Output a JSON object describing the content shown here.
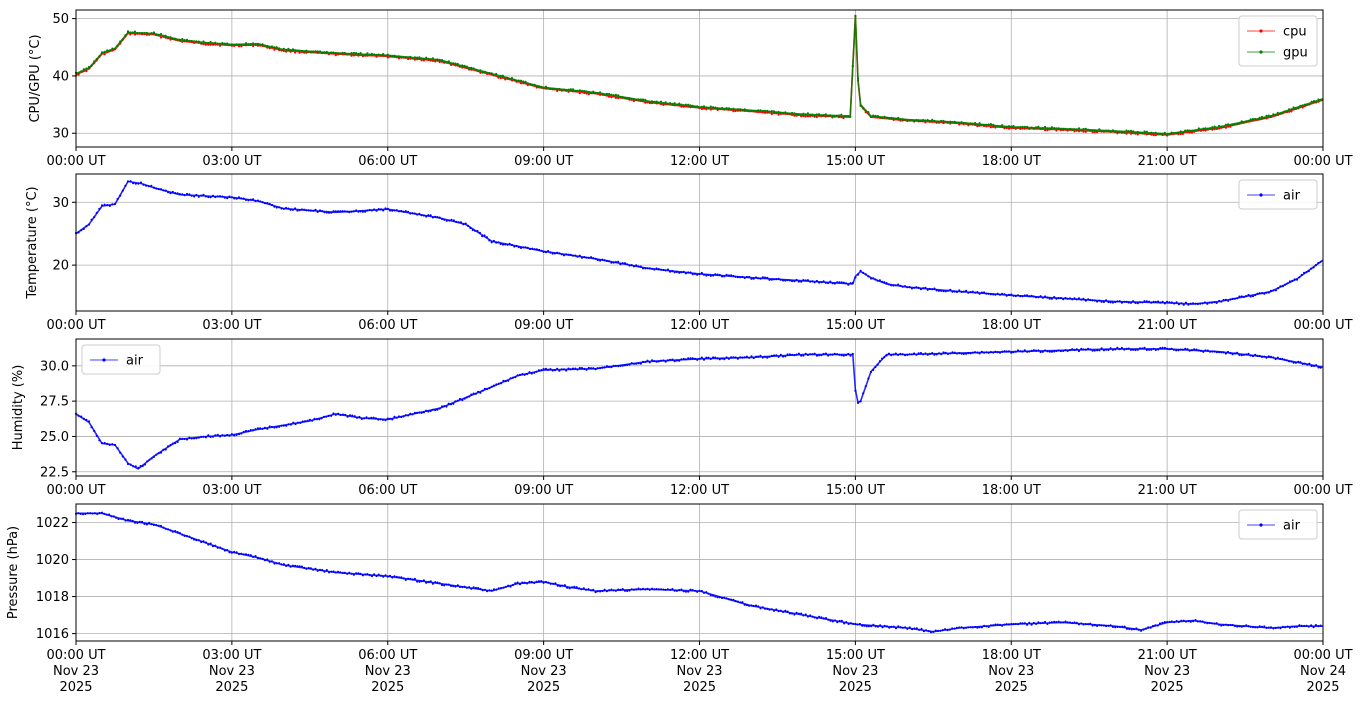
{
  "colors": {
    "cpu": "#ff0000",
    "gpu": "#008000",
    "air": "#0000ff",
    "grid": "#b0b0b0",
    "legend_border": "#cccccc"
  },
  "x_axis": {
    "ticks": [
      "00:00 UT",
      "03:00 UT",
      "06:00 UT",
      "09:00 UT",
      "12:00 UT",
      "15:00 UT",
      "18:00 UT",
      "21:00 UT",
      "00:00 UT"
    ],
    "tick_hours": [
      0,
      3,
      6,
      9,
      12,
      15,
      18,
      21,
      24
    ],
    "date_labels": [
      "Nov 23",
      "Nov 23",
      "Nov 23",
      "Nov 23",
      "Nov 23",
      "Nov 23",
      "Nov 23",
      "Nov 23",
      "Nov 24"
    ],
    "year_labels": [
      "2025",
      "2025",
      "2025",
      "2025",
      "2025",
      "2025",
      "2025",
      "2025",
      "2025"
    ],
    "range_hours": [
      0,
      24
    ]
  },
  "chart_data": [
    {
      "type": "line",
      "ylabel": "CPU/GPU (°C)",
      "ylim": [
        27.6,
        51.5
      ],
      "yticks": [
        30,
        40,
        50
      ],
      "grid": true,
      "legend_position": "top-right",
      "series": [
        {
          "name": "cpu",
          "color": "#ff0000",
          "x": [
            0,
            0.25,
            0.5,
            0.75,
            1.0,
            1.5,
            2.0,
            2.5,
            3.0,
            3.5,
            4.0,
            5.0,
            6.0,
            7.0,
            8.0,
            9.0,
            10.0,
            11.0,
            12.0,
            13.0,
            14.0,
            14.9,
            15.0,
            15.05,
            15.1,
            15.3,
            16.0,
            17.0,
            18.0,
            19.0,
            20.0,
            21.0,
            22.0,
            23.0,
            24.0
          ],
          "y": [
            40.2,
            41.2,
            43.8,
            44.6,
            47.4,
            47.2,
            46.1,
            45.6,
            45.3,
            45.4,
            44.4,
            43.8,
            43.4,
            42.6,
            40.2,
            37.8,
            36.9,
            35.4,
            34.4,
            33.8,
            33.1,
            32.8,
            50.3,
            39.2,
            34.8,
            32.8,
            32.2,
            31.7,
            30.9,
            30.6,
            30.2,
            29.7,
            30.9,
            32.8,
            35.8
          ]
        },
        {
          "name": "gpu",
          "color": "#008000",
          "x": [
            0,
            0.25,
            0.5,
            0.75,
            1.0,
            1.5,
            2.0,
            2.5,
            3.0,
            3.5,
            4.0,
            5.0,
            6.0,
            7.0,
            8.0,
            9.0,
            10.0,
            11.0,
            12.0,
            13.0,
            14.0,
            14.9,
            15.0,
            15.05,
            15.1,
            15.3,
            16.0,
            17.0,
            18.0,
            19.0,
            20.0,
            21.0,
            22.0,
            23.0,
            24.0
          ],
          "y": [
            40.4,
            41.4,
            44.0,
            44.8,
            47.6,
            47.4,
            46.3,
            45.8,
            45.5,
            45.6,
            44.6,
            44.0,
            43.6,
            42.8,
            40.4,
            38.0,
            37.1,
            35.6,
            34.6,
            34.0,
            33.3,
            33.0,
            50.5,
            39.4,
            35.0,
            33.0,
            32.4,
            31.9,
            31.1,
            30.8,
            30.4,
            29.9,
            31.1,
            33.0,
            36.0
          ]
        }
      ]
    },
    {
      "type": "line",
      "ylabel": "Temperature (°C)",
      "ylim": [
        12.7,
        34.5
      ],
      "yticks": [
        20,
        30
      ],
      "grid": true,
      "legend_position": "top-right",
      "series": [
        {
          "name": "air",
          "color": "#0000ff",
          "x": [
            0,
            0.25,
            0.5,
            0.75,
            1.0,
            1.25,
            1.5,
            2.0,
            2.5,
            3.0,
            3.5,
            4.0,
            5.0,
            6.0,
            7.0,
            7.5,
            8.0,
            9.0,
            10.0,
            11.0,
            12.0,
            13.0,
            14.0,
            14.95,
            15.0,
            15.1,
            15.3,
            15.6,
            16.0,
            17.0,
            18.0,
            19.0,
            20.0,
            21.0,
            21.5,
            22.0,
            23.0,
            23.5,
            24.0
          ],
          "y": [
            25.0,
            26.5,
            29.4,
            29.7,
            33.3,
            33.0,
            32.3,
            31.2,
            31.0,
            30.8,
            30.2,
            29.0,
            28.4,
            28.9,
            27.5,
            26.5,
            23.8,
            22.2,
            21.0,
            19.5,
            18.6,
            18.0,
            17.5,
            17.0,
            18.2,
            19.0,
            18.0,
            17.0,
            16.5,
            15.8,
            15.2,
            14.7,
            14.2,
            14.0,
            13.8,
            14.2,
            15.8,
            17.8,
            20.8
          ]
        }
      ]
    },
    {
      "type": "line",
      "ylabel": "Humidity (%)",
      "ylim": [
        22.2,
        31.9
      ],
      "yticks": [
        22.5,
        25.0,
        27.5,
        30.0
      ],
      "ytick_labels": [
        "22.5",
        "25.0",
        "27.5",
        "30.0"
      ],
      "grid": true,
      "legend_position": "top-left",
      "series": [
        {
          "name": "air",
          "color": "#0000ff",
          "x": [
            0,
            0.25,
            0.5,
            0.75,
            1.0,
            1.2,
            1.5,
            2.0,
            2.5,
            3.0,
            3.5,
            4.0,
            4.5,
            5.0,
            5.5,
            6.0,
            7.0,
            8.0,
            8.5,
            9.0,
            10.0,
            11.0,
            12.0,
            13.0,
            14.0,
            14.95,
            15.0,
            15.05,
            15.1,
            15.3,
            15.6,
            16.0,
            17.0,
            18.0,
            19.0,
            20.0,
            21.0,
            22.0,
            23.0,
            24.0
          ],
          "y": [
            26.6,
            26.0,
            24.5,
            24.4,
            23.1,
            22.7,
            23.6,
            24.8,
            25.0,
            25.1,
            25.5,
            25.8,
            26.1,
            26.6,
            26.3,
            26.2,
            27.0,
            28.5,
            29.3,
            29.7,
            29.8,
            30.3,
            30.5,
            30.6,
            30.8,
            30.8,
            28.3,
            27.4,
            27.5,
            29.6,
            30.8,
            30.8,
            30.9,
            31.0,
            31.1,
            31.2,
            31.2,
            31.0,
            30.6,
            29.9
          ]
        }
      ]
    },
    {
      "type": "line",
      "ylabel": "Pressure (hPa)",
      "ylim": [
        1015.6,
        1023.0
      ],
      "yticks": [
        1016,
        1018,
        1020,
        1022
      ],
      "grid": true,
      "legend_position": "top-right",
      "series": [
        {
          "name": "air",
          "color": "#0000ff",
          "x": [
            0,
            0.5,
            1.0,
            1.5,
            2.0,
            2.5,
            3.0,
            3.5,
            4.0,
            5.0,
            6.0,
            7.0,
            8.0,
            8.5,
            9.0,
            9.5,
            10.0,
            11.0,
            12.0,
            13.0,
            14.0,
            15.0,
            16.0,
            16.5,
            17.0,
            18.0,
            19.0,
            20.0,
            20.5,
            21.0,
            21.5,
            22.0,
            23.0,
            23.5,
            24.0
          ],
          "y": [
            1022.5,
            1022.5,
            1022.1,
            1021.9,
            1021.4,
            1020.9,
            1020.4,
            1020.1,
            1019.7,
            1019.3,
            1019.1,
            1018.7,
            1018.3,
            1018.7,
            1018.8,
            1018.5,
            1018.3,
            1018.4,
            1018.3,
            1017.5,
            1017.0,
            1016.5,
            1016.3,
            1016.1,
            1016.3,
            1016.5,
            1016.6,
            1016.4,
            1016.2,
            1016.6,
            1016.7,
            1016.5,
            1016.3,
            1016.4,
            1016.4
          ]
        }
      ]
    }
  ]
}
